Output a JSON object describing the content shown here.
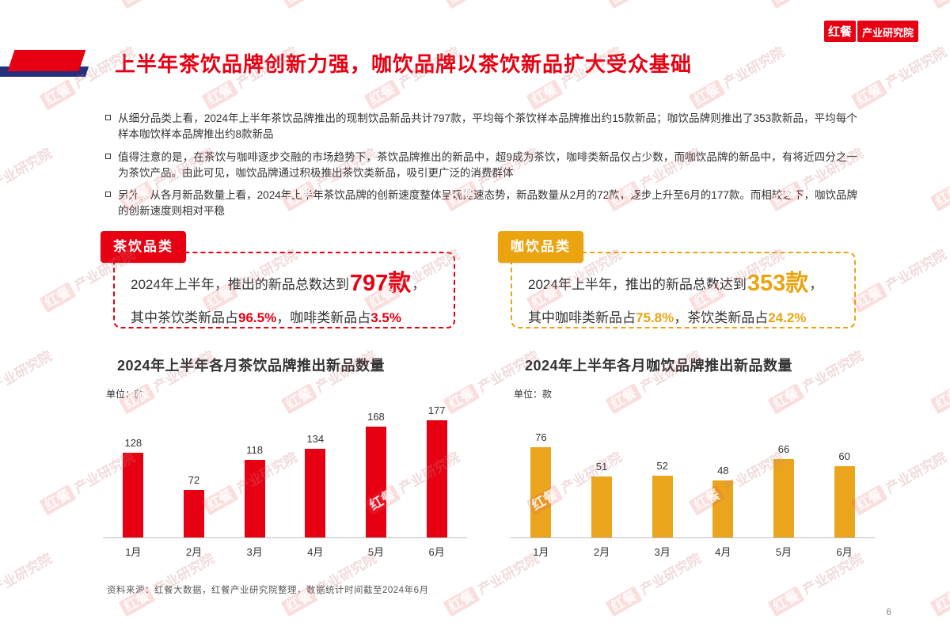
{
  "logo": {
    "brand": "红餐",
    "suffix": "产业研究院"
  },
  "watermark": {
    "brand": "红餐",
    "suffix": "产业研究院"
  },
  "title": "上半年茶饮品牌创新力强，咖饮品牌以茶饮新品扩大受众基础",
  "bullets": [
    "从细分品类上看，2024年上半年茶饮品牌推出的现制饮品新品共计797款，平均每个茶饮样本品牌推出约15款新品；咖饮品牌则推出了353款新品，平均每个样本咖饮样本品牌推出约8款新品",
    "值得注意的是，在茶饮与咖啡逐步交融的市场趋势下，茶饮品牌推出的新品中，超9成为茶饮，咖啡类新品仅占少数，而咖饮品牌的新品中，有将近四分之一为茶饮产品。由此可见，咖饮品牌通过积极推出茶饮类新品，吸引更广泛的消费群体",
    "另外，从各月新品数量上看，2024年上半年茶饮品牌的创新速度整体呈现提速态势，新品数量从2月的72款，逐步上升至6月的177款。而相较之下，咖饮品牌的创新速度则相对平稳"
  ],
  "summary_boxes": [
    {
      "badge": "茶饮品类",
      "prefix": "2024年上半年，推出的新品总数达到",
      "big_value": "797款",
      "after_big": "，",
      "detail_parts": [
        "其中茶饮类新品占",
        "96.5%",
        "，咖啡类新品占",
        "3.5%"
      ],
      "accent_color": "#e60012"
    },
    {
      "badge": "咖饮品类",
      "prefix": "2024年上半年，推出的新品总数达到",
      "big_value": "353款",
      "after_big": "，",
      "detail_parts": [
        "其中咖啡类新品占",
        "75.8%",
        "，茶饮类新品占",
        "24.2%"
      ],
      "accent_color": "#eaa410"
    }
  ],
  "chart_data": [
    {
      "type": "bar",
      "title": "2024年上半年各月茶饮品牌推出新品数量",
      "unit_label": "单位：款",
      "categories": [
        "1月",
        "2月",
        "3月",
        "4月",
        "5月",
        "6月"
      ],
      "values": [
        128,
        72,
        118,
        134,
        168,
        177
      ],
      "color": "#e60012",
      "ylim": [
        0,
        180
      ],
      "grid": false,
      "legend": "none"
    },
    {
      "type": "bar",
      "title": "2024年上半年各月咖饮品牌推出新品数量",
      "unit_label": "单位：款",
      "categories": [
        "1月",
        "2月",
        "3月",
        "4月",
        "5月",
        "6月"
      ],
      "values": [
        76,
        51,
        52,
        48,
        66,
        60
      ],
      "color": "#eaa51d",
      "ylim": [
        0,
        100
      ],
      "grid": false,
      "legend": "none"
    }
  ],
  "footer": {
    "source": "资料来源：红餐大数据，红餐产业研究院整理，数据统计时间截至2024年6月",
    "page": "6"
  }
}
